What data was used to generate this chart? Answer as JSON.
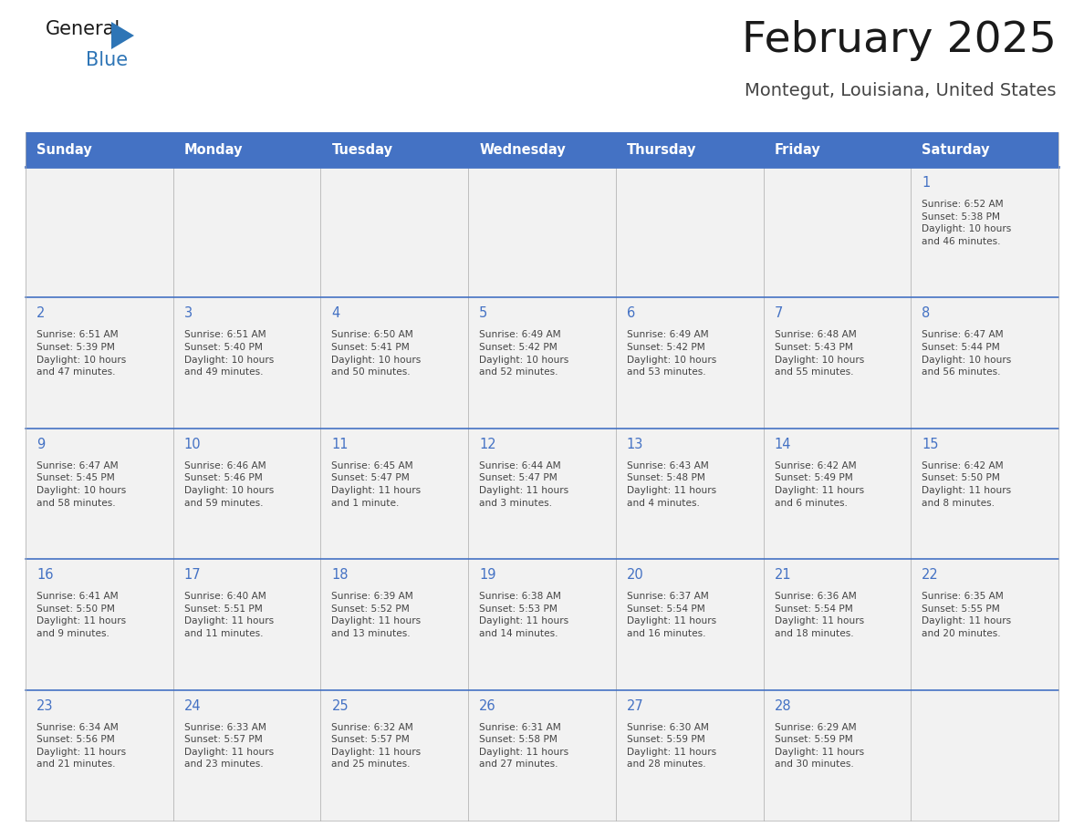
{
  "title": "February 2025",
  "subtitle": "Montegut, Louisiana, United States",
  "header_bg": "#4472C4",
  "header_text_color": "#FFFFFF",
  "cell_bg": "#F2F2F2",
  "day_number_color": "#4472C4",
  "text_color": "#444444",
  "line_color": "#4472C4",
  "border_color": "#AAAAAA",
  "days_of_week": [
    "Sunday",
    "Monday",
    "Tuesday",
    "Wednesday",
    "Thursday",
    "Friday",
    "Saturday"
  ],
  "calendar": [
    [
      null,
      null,
      null,
      null,
      null,
      null,
      {
        "day": 1,
        "sunrise": "6:52 AM",
        "sunset": "5:38 PM",
        "daylight": "10 hours\nand 46 minutes."
      }
    ],
    [
      {
        "day": 2,
        "sunrise": "6:51 AM",
        "sunset": "5:39 PM",
        "daylight": "10 hours\nand 47 minutes."
      },
      {
        "day": 3,
        "sunrise": "6:51 AM",
        "sunset": "5:40 PM",
        "daylight": "10 hours\nand 49 minutes."
      },
      {
        "day": 4,
        "sunrise": "6:50 AM",
        "sunset": "5:41 PM",
        "daylight": "10 hours\nand 50 minutes."
      },
      {
        "day": 5,
        "sunrise": "6:49 AM",
        "sunset": "5:42 PM",
        "daylight": "10 hours\nand 52 minutes."
      },
      {
        "day": 6,
        "sunrise": "6:49 AM",
        "sunset": "5:42 PM",
        "daylight": "10 hours\nand 53 minutes."
      },
      {
        "day": 7,
        "sunrise": "6:48 AM",
        "sunset": "5:43 PM",
        "daylight": "10 hours\nand 55 minutes."
      },
      {
        "day": 8,
        "sunrise": "6:47 AM",
        "sunset": "5:44 PM",
        "daylight": "10 hours\nand 56 minutes."
      }
    ],
    [
      {
        "day": 9,
        "sunrise": "6:47 AM",
        "sunset": "5:45 PM",
        "daylight": "10 hours\nand 58 minutes."
      },
      {
        "day": 10,
        "sunrise": "6:46 AM",
        "sunset": "5:46 PM",
        "daylight": "10 hours\nand 59 minutes."
      },
      {
        "day": 11,
        "sunrise": "6:45 AM",
        "sunset": "5:47 PM",
        "daylight": "11 hours\nand 1 minute."
      },
      {
        "day": 12,
        "sunrise": "6:44 AM",
        "sunset": "5:47 PM",
        "daylight": "11 hours\nand 3 minutes."
      },
      {
        "day": 13,
        "sunrise": "6:43 AM",
        "sunset": "5:48 PM",
        "daylight": "11 hours\nand 4 minutes."
      },
      {
        "day": 14,
        "sunrise": "6:42 AM",
        "sunset": "5:49 PM",
        "daylight": "11 hours\nand 6 minutes."
      },
      {
        "day": 15,
        "sunrise": "6:42 AM",
        "sunset": "5:50 PM",
        "daylight": "11 hours\nand 8 minutes."
      }
    ],
    [
      {
        "day": 16,
        "sunrise": "6:41 AM",
        "sunset": "5:50 PM",
        "daylight": "11 hours\nand 9 minutes."
      },
      {
        "day": 17,
        "sunrise": "6:40 AM",
        "sunset": "5:51 PM",
        "daylight": "11 hours\nand 11 minutes."
      },
      {
        "day": 18,
        "sunrise": "6:39 AM",
        "sunset": "5:52 PM",
        "daylight": "11 hours\nand 13 minutes."
      },
      {
        "day": 19,
        "sunrise": "6:38 AM",
        "sunset": "5:53 PM",
        "daylight": "11 hours\nand 14 minutes."
      },
      {
        "day": 20,
        "sunrise": "6:37 AM",
        "sunset": "5:54 PM",
        "daylight": "11 hours\nand 16 minutes."
      },
      {
        "day": 21,
        "sunrise": "6:36 AM",
        "sunset": "5:54 PM",
        "daylight": "11 hours\nand 18 minutes."
      },
      {
        "day": 22,
        "sunrise": "6:35 AM",
        "sunset": "5:55 PM",
        "daylight": "11 hours\nand 20 minutes."
      }
    ],
    [
      {
        "day": 23,
        "sunrise": "6:34 AM",
        "sunset": "5:56 PM",
        "daylight": "11 hours\nand 21 minutes."
      },
      {
        "day": 24,
        "sunrise": "6:33 AM",
        "sunset": "5:57 PM",
        "daylight": "11 hours\nand 23 minutes."
      },
      {
        "day": 25,
        "sunrise": "6:32 AM",
        "sunset": "5:57 PM",
        "daylight": "11 hours\nand 25 minutes."
      },
      {
        "day": 26,
        "sunrise": "6:31 AM",
        "sunset": "5:58 PM",
        "daylight": "11 hours\nand 27 minutes."
      },
      {
        "day": 27,
        "sunrise": "6:30 AM",
        "sunset": "5:59 PM",
        "daylight": "11 hours\nand 28 minutes."
      },
      {
        "day": 28,
        "sunrise": "6:29 AM",
        "sunset": "5:59 PM",
        "daylight": "11 hours\nand 30 minutes."
      },
      null
    ]
  ],
  "logo_color_general": "#1a1a1a",
  "logo_color_blue": "#2E75B6",
  "logo_triangle_color": "#2E75B6"
}
